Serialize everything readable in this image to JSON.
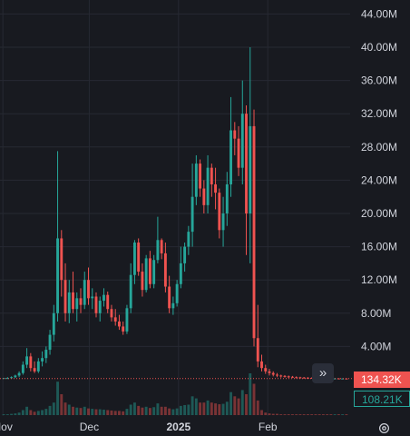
{
  "chart_data": {
    "type": "candlestick",
    "y_axis_ticks": [
      "44.00M",
      "40.00M",
      "36.00M",
      "32.00M",
      "28.00M",
      "24.00M",
      "20.00M",
      "16.00M",
      "12.00M",
      "8.00M",
      "4.00M"
    ],
    "y_tick_values": [
      44,
      40,
      36,
      32,
      28,
      24,
      20,
      16,
      12,
      8,
      4
    ],
    "ylim": [
      0,
      45.5
    ],
    "y_unit": "M",
    "x_axis_ticks": [
      {
        "label": "Nov",
        "day": 0,
        "bold": false
      },
      {
        "label": "Dec",
        "day": 30,
        "bold": false
      },
      {
        "label": "2025",
        "day": 61,
        "bold": true
      },
      {
        "label": "Feb",
        "day": 92,
        "bold": false
      }
    ],
    "x_day_range": [
      -1,
      125
    ],
    "last_price_label": "134.32K",
    "last_price_value": 0.134,
    "volume_label": "108.21K",
    "candles": [
      [
        0.1,
        0.2,
        0.1,
        0.2
      ],
      [
        0.2,
        0.3,
        0.1,
        0.2
      ],
      [
        0.2,
        0.4,
        0.1,
        0.3
      ],
      [
        0.3,
        0.6,
        0.2,
        0.5
      ],
      [
        0.5,
        1.0,
        0.3,
        0.8
      ],
      [
        0.8,
        2.2,
        0.6,
        1.8
      ],
      [
        1.8,
        3.8,
        1.4,
        2.8
      ],
      [
        2.8,
        3.2,
        1.0,
        1.4
      ],
      [
        1.4,
        2.2,
        0.8,
        1.0
      ],
      [
        1.0,
        2.6,
        0.8,
        2.2
      ],
      [
        2.2,
        3.4,
        1.6,
        2.6
      ],
      [
        2.6,
        4.0,
        2.0,
        3.6
      ],
      [
        3.6,
        6.0,
        3.0,
        5.4
      ],
      [
        5.4,
        9.0,
        4.6,
        8.0
      ],
      [
        8.0,
        27.5,
        7.0,
        17.0
      ],
      [
        17.0,
        18.0,
        10.0,
        12.0
      ],
      [
        12.0,
        14.0,
        7.0,
        8.0
      ],
      [
        8.0,
        12.0,
        6.8,
        10.5
      ],
      [
        10.5,
        13.0,
        8.0,
        8.5
      ],
      [
        8.5,
        10.5,
        7.0,
        9.8
      ],
      [
        9.8,
        11.0,
        8.0,
        9.0
      ],
      [
        9.0,
        13.0,
        8.5,
        12.0
      ],
      [
        12.0,
        13.5,
        9.0,
        9.8
      ],
      [
        9.8,
        11.0,
        8.5,
        10.0
      ],
      [
        10.0,
        10.5,
        7.5,
        8.0
      ],
      [
        8.0,
        10.0,
        7.0,
        9.5
      ],
      [
        9.5,
        11.0,
        8.8,
        10.2
      ],
      [
        10.2,
        10.6,
        8.0,
        8.5
      ],
      [
        8.5,
        9.0,
        7.0,
        7.5
      ],
      [
        7.5,
        8.5,
        6.5,
        7.0
      ],
      [
        7.0,
        7.8,
        6.0,
        6.4
      ],
      [
        6.4,
        7.0,
        5.4,
        5.8
      ],
      [
        5.8,
        9.0,
        5.5,
        8.6
      ],
      [
        8.6,
        14.0,
        8.0,
        12.6
      ],
      [
        12.6,
        16.8,
        11.5,
        16.5
      ],
      [
        16.5,
        17.0,
        12.5,
        13.0
      ],
      [
        13.0,
        14.0,
        10.0,
        10.8
      ],
      [
        10.8,
        15.0,
        10.5,
        14.6
      ],
      [
        14.6,
        15.5,
        11.0,
        11.5
      ],
      [
        11.5,
        15.0,
        11.0,
        14.4
      ],
      [
        14.4,
        19.6,
        14.0,
        16.8
      ],
      [
        16.8,
        17.0,
        14.5,
        15.2
      ],
      [
        15.2,
        16.5,
        10.5,
        11.2
      ],
      [
        11.2,
        12.5,
        8.0,
        8.6
      ],
      [
        8.6,
        10.0,
        7.8,
        9.2
      ],
      [
        9.2,
        12.0,
        8.8,
        11.5
      ],
      [
        11.5,
        16.0,
        11.0,
        14.0
      ],
      [
        14.0,
        16.5,
        13.0,
        16.0
      ],
      [
        16.0,
        18.5,
        15.0,
        17.8
      ],
      [
        17.8,
        26.0,
        16.0,
        22.0
      ],
      [
        22.0,
        27.0,
        21.0,
        26.0
      ],
      [
        26.0,
        26.5,
        22.0,
        23.0
      ],
      [
        23.0,
        24.0,
        20.0,
        21.0
      ],
      [
        21.0,
        27.0,
        20.0,
        25.5
      ],
      [
        25.5,
        26.0,
        22.0,
        23.5
      ],
      [
        23.5,
        25.5,
        20.5,
        22.5
      ],
      [
        22.5,
        23.0,
        17.0,
        18.0
      ],
      [
        18.0,
        22.0,
        16.0,
        20.0
      ],
      [
        20.0,
        25.0,
        18.5,
        23.5
      ],
      [
        23.5,
        34.0,
        22.0,
        30.0
      ],
      [
        30.0,
        31.0,
        27.0,
        29.0
      ],
      [
        29.0,
        30.5,
        24.5,
        25.5
      ],
      [
        25.5,
        36.0,
        23.5,
        32.0
      ],
      [
        32.0,
        33.0,
        15.0,
        20.0
      ],
      [
        20.0,
        40.0,
        14.0,
        30.5
      ],
      [
        30.5,
        32.5,
        4.0,
        5.0
      ],
      [
        5.0,
        9.0,
        1.5,
        2.2
      ],
      [
        2.2,
        3.0,
        1.0,
        1.4
      ],
      [
        1.4,
        1.8,
        0.7,
        1.0
      ],
      [
        1.0,
        1.3,
        0.5,
        0.8
      ],
      [
        0.8,
        1.0,
        0.4,
        0.6
      ],
      [
        0.6,
        0.8,
        0.3,
        0.5
      ],
      [
        0.5,
        0.6,
        0.25,
        0.45
      ],
      [
        0.45,
        0.55,
        0.25,
        0.4
      ],
      [
        0.4,
        0.5,
        0.2,
        0.35
      ],
      [
        0.35,
        0.45,
        0.2,
        0.3
      ],
      [
        0.3,
        0.4,
        0.18,
        0.28
      ],
      [
        0.28,
        0.35,
        0.15,
        0.26
      ],
      [
        0.26,
        0.32,
        0.15,
        0.24
      ],
      [
        0.24,
        0.3,
        0.14,
        0.22
      ],
      [
        0.22,
        0.28,
        0.13,
        0.2
      ],
      [
        0.2,
        0.26,
        0.12,
        0.19
      ],
      [
        0.19,
        0.24,
        0.12,
        0.18
      ],
      [
        0.18,
        0.22,
        0.11,
        0.17
      ],
      [
        0.17,
        0.21,
        0.11,
        0.16
      ],
      [
        0.16,
        0.2,
        0.1,
        0.15
      ],
      [
        0.15,
        0.19,
        0.1,
        0.15
      ],
      [
        0.15,
        0.18,
        0.1,
        0.14
      ],
      [
        0.14,
        0.17,
        0.1,
        0.14
      ],
      [
        0.14,
        0.16,
        0.1,
        0.134
      ]
    ],
    "volumes": [
      0.02,
      0.02,
      0.03,
      0.04,
      0.06,
      0.12,
      0.2,
      0.12,
      0.08,
      0.1,
      0.12,
      0.15,
      0.22,
      0.3,
      0.8,
      0.5,
      0.3,
      0.25,
      0.2,
      0.18,
      0.17,
      0.2,
      0.16,
      0.15,
      0.14,
      0.14,
      0.13,
      0.12,
      0.11,
      0.1,
      0.1,
      0.09,
      0.15,
      0.25,
      0.3,
      0.22,
      0.18,
      0.2,
      0.17,
      0.19,
      0.28,
      0.2,
      0.2,
      0.16,
      0.14,
      0.16,
      0.22,
      0.24,
      0.25,
      0.45,
      0.4,
      0.3,
      0.3,
      0.35,
      0.3,
      0.28,
      0.26,
      0.27,
      0.32,
      0.55,
      0.45,
      0.4,
      0.6,
      0.5,
      1.0,
      0.75,
      0.35,
      0.12,
      0.06,
      0.04,
      0.03,
      0.03,
      0.02,
      0.02,
      0.02,
      0.02,
      0.02,
      0.02,
      0.02,
      0.02,
      0.02,
      0.02,
      0.02,
      0.02,
      0.02,
      0.02,
      0.02,
      0.02,
      0.02,
      0.02
    ],
    "colors": {
      "up": "#26a69a",
      "down": "#ef5350",
      "grid": "#262932",
      "axis_text": "#d1d4dc",
      "background": "#181a20"
    }
  },
  "ui": {
    "scroll_icon": "chevrons-right-icon",
    "scroll_glyph": "»",
    "settings_icon": "gear-icon"
  }
}
